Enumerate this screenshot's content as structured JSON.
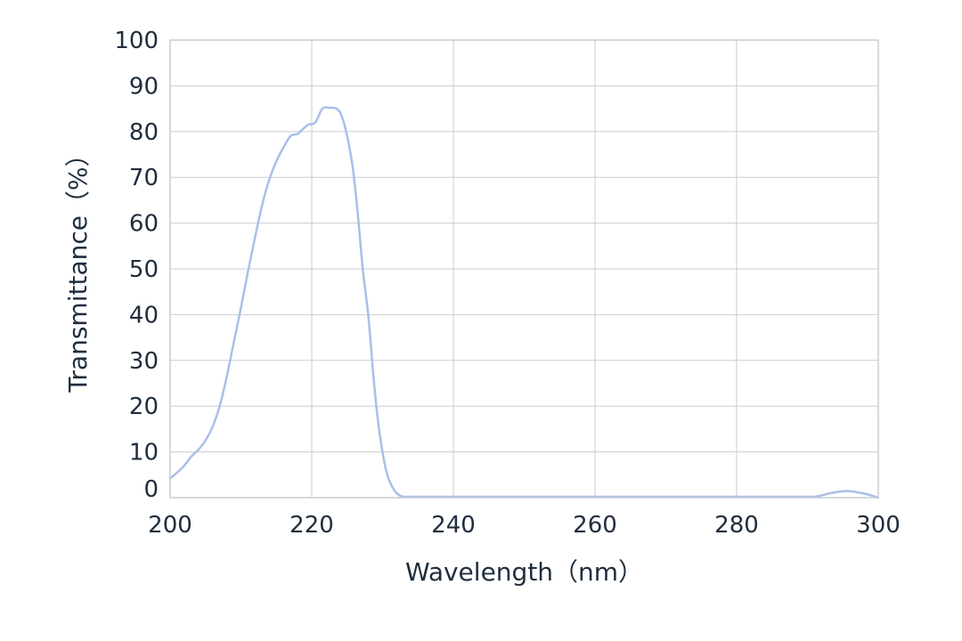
{
  "chart_data": {
    "type": "line",
    "title": "",
    "xlabel": "Wavelength（nm）",
    "ylabel": "Transmittance（%）",
    "xlim": [
      200,
      300
    ],
    "ylim": [
      0,
      100
    ],
    "x_ticks": [
      200,
      220,
      240,
      260,
      280,
      300
    ],
    "y_ticks": [
      0,
      10,
      20,
      30,
      40,
      50,
      60,
      70,
      80,
      90,
      100
    ],
    "x_tick_labels": [
      "200",
      "220",
      "240",
      "260",
      "280",
      "300"
    ],
    "y_tick_labels": [
      "0",
      "10",
      "20",
      "30",
      "40",
      "50",
      "60",
      "70",
      "80",
      "90",
      "100"
    ],
    "grid": true,
    "legend": "none",
    "series": [
      {
        "color": "#a9bfe8",
        "x": [
          200,
          201,
          202,
          203,
          204,
          205,
          206,
          207,
          208,
          209,
          210,
          211,
          212,
          213,
          214,
          215,
          216,
          217,
          218,
          218.7,
          219.5,
          220.5,
          221.5,
          222.5,
          223.5,
          224.2,
          225,
          225.8,
          226.5,
          227.2,
          228,
          228.8,
          229.5,
          230.5,
          231.5,
          232.5,
          233.5,
          234.5,
          235.5,
          236.5,
          237.5,
          240,
          250,
          260,
          270,
          280,
          290,
          291,
          292,
          293,
          294,
          295,
          296,
          297,
          298,
          299,
          300
        ],
        "y": [
          4.2,
          5.5,
          7,
          9,
          10.5,
          12.5,
          15.5,
          20,
          26.5,
          34,
          41.5,
          49.5,
          57,
          64,
          69.5,
          73.5,
          76.5,
          79,
          79.5,
          80.5,
          81.5,
          82,
          85,
          85.2,
          85,
          83.5,
          79,
          72,
          62,
          50,
          39.5,
          25,
          15,
          6,
          2,
          0.4,
          0.2,
          0.2,
          0.2,
          0.2,
          0.2,
          0.2,
          0.2,
          0.2,
          0.2,
          0.2,
          0.2,
          0.2,
          0.5,
          0.9,
          1.2,
          1.4,
          1.4,
          1.2,
          0.9,
          0.5,
          0
        ]
      }
    ]
  }
}
